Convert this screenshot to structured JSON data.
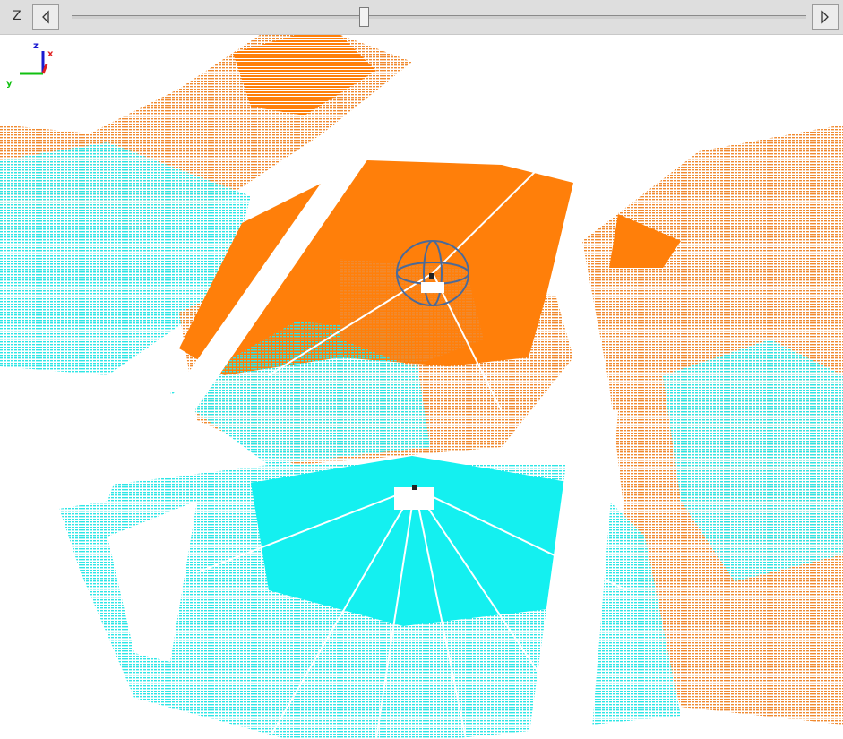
{
  "toolbar": {
    "slider_label": "Z"
  },
  "axes_gizmo": {
    "z": "z",
    "x": "x",
    "y": "y"
  }
}
